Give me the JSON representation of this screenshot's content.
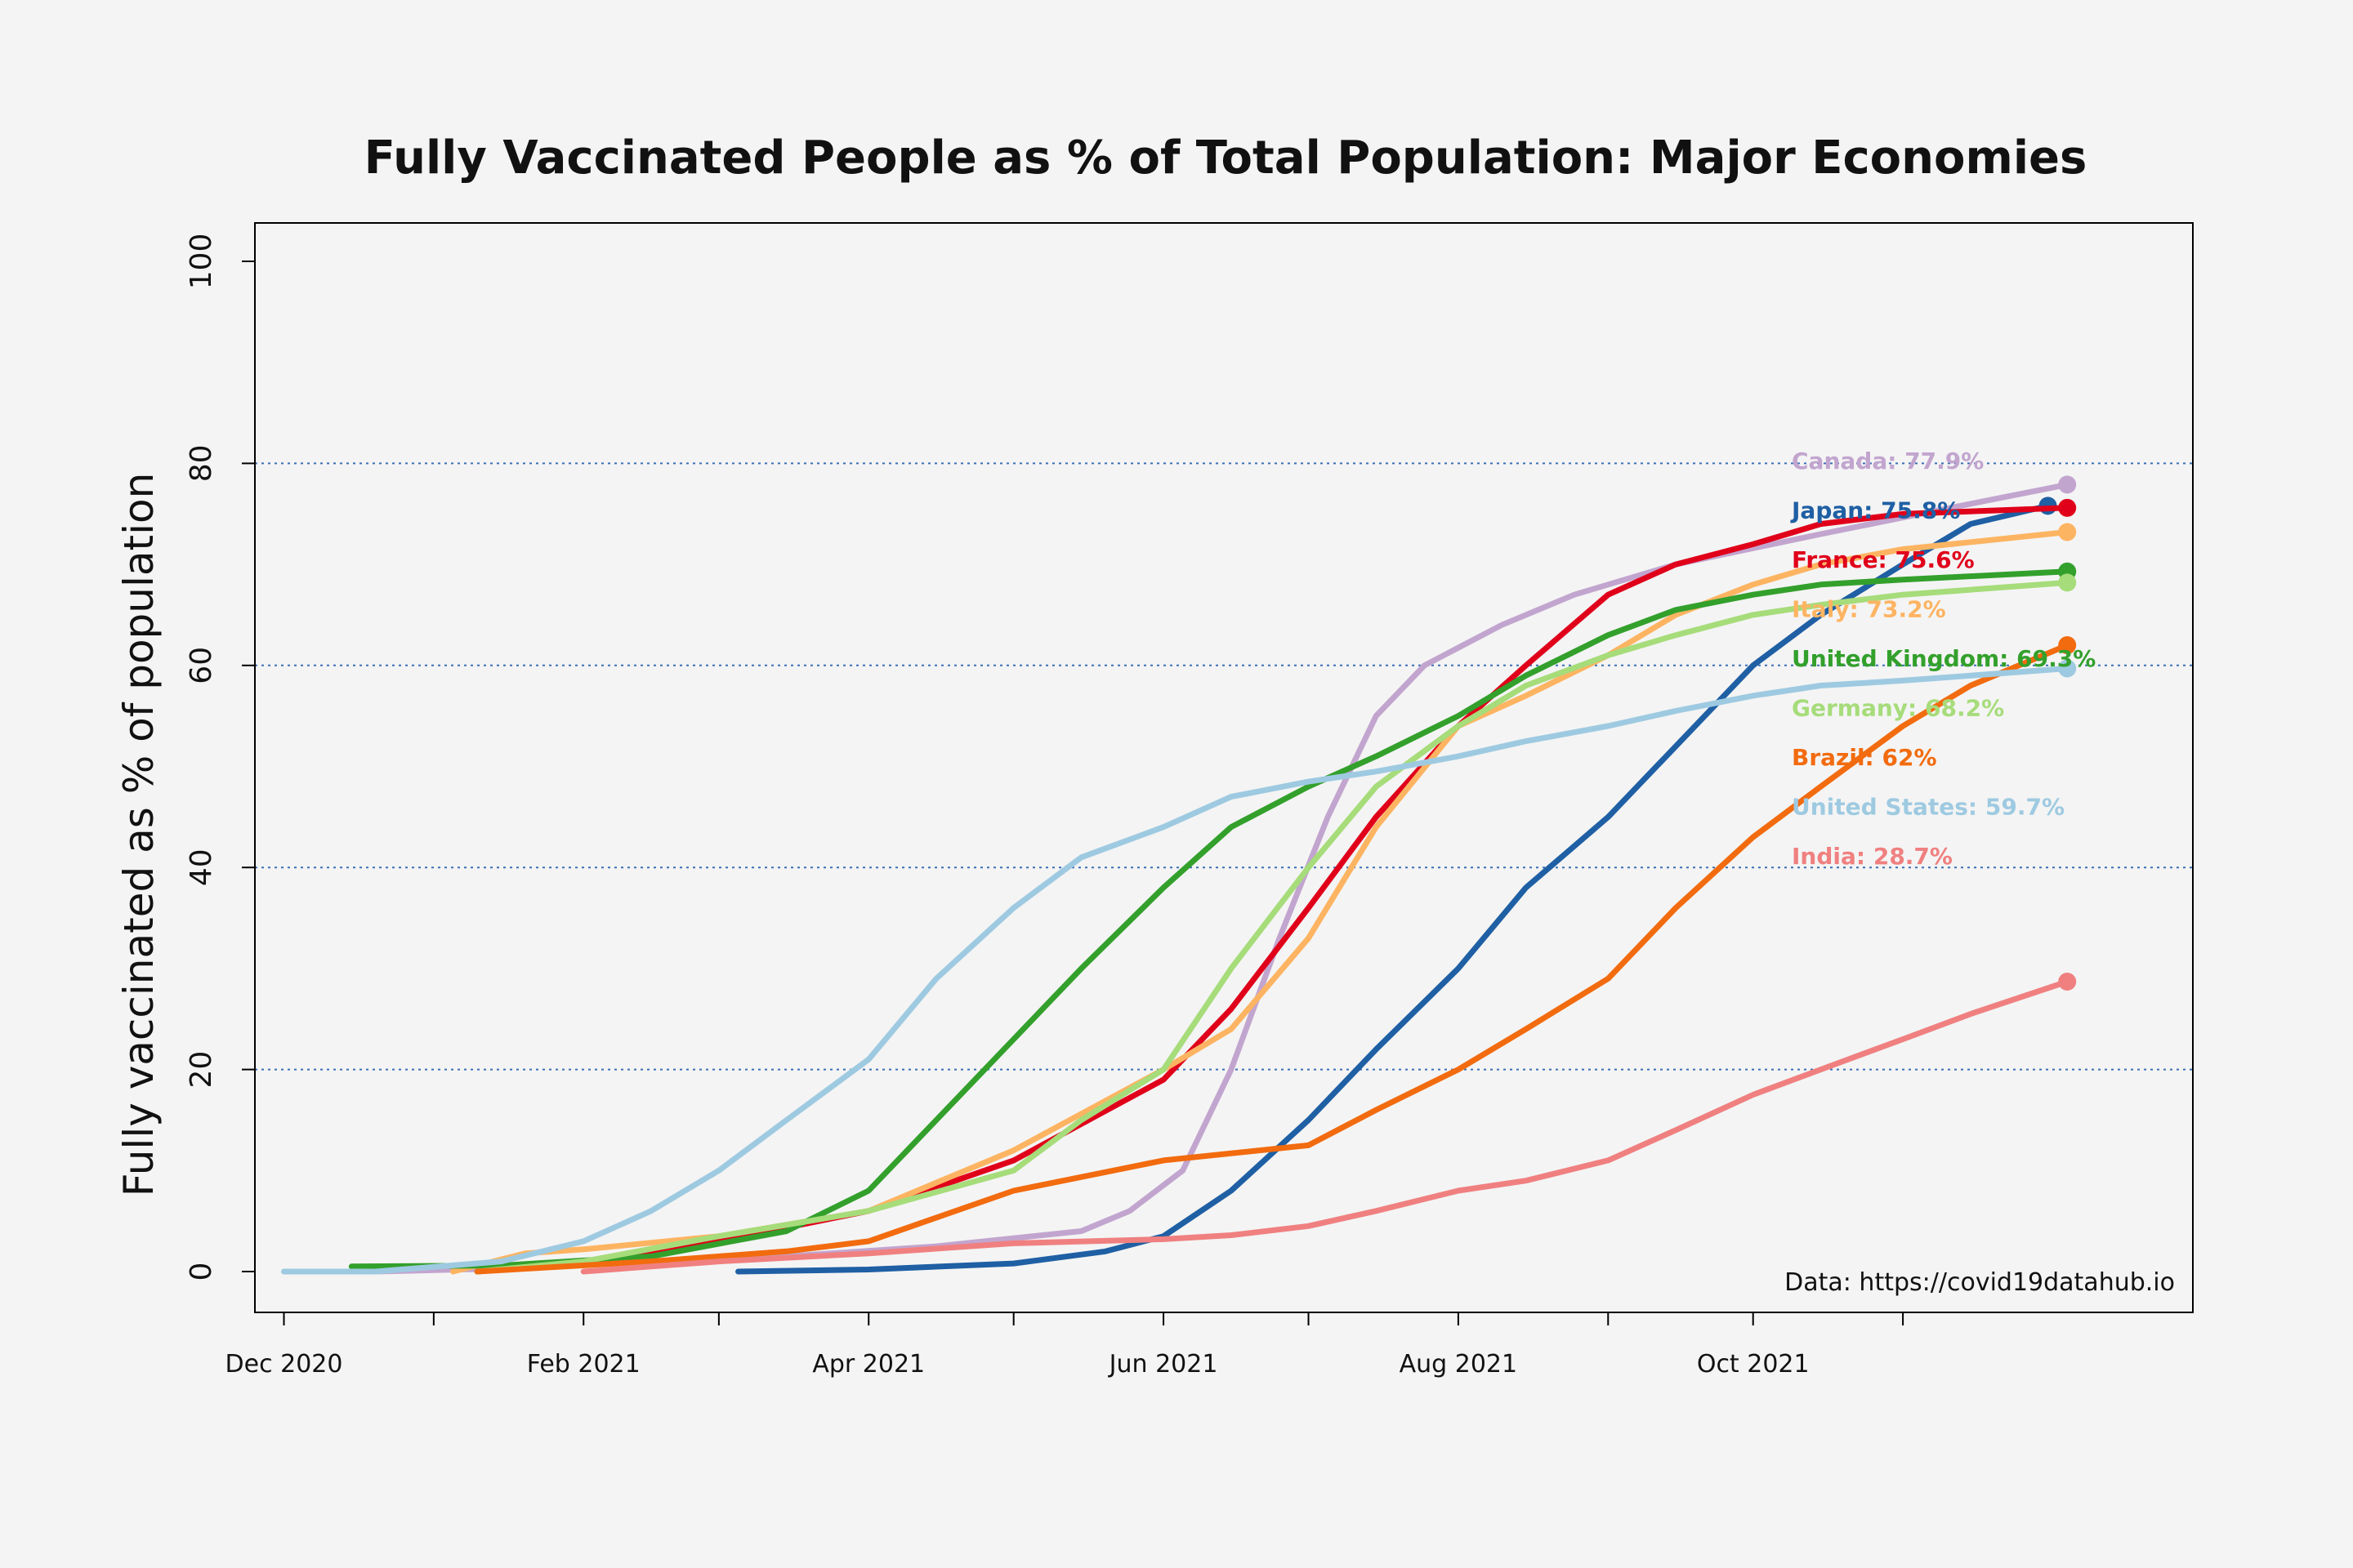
{
  "chart_data": {
    "type": "line",
    "title": "Fully Vaccinated People as % of Total Population: Major Economies",
    "ylabel": "Fully vaccinated as % of population",
    "xlabel": "",
    "source": "Data: https://covid19datahub.io",
    "ylim": [
      0,
      100
    ],
    "y_ticks": [
      0,
      20,
      40,
      60,
      80,
      100
    ],
    "y_grid": [
      20,
      40,
      60,
      80
    ],
    "x_range": [
      "2020-11-25",
      "2021-12-31"
    ],
    "x_tick_marks": [
      "2020-12-01",
      "2021-01-01",
      "2021-02-01",
      "2021-03-01",
      "2021-04-01",
      "2021-05-01",
      "2021-06-01",
      "2021-07-01",
      "2021-08-01",
      "2021-09-01",
      "2021-10-01",
      "2021-11-01"
    ],
    "x_ticks": [
      {
        "date": "2020-12-01",
        "label": "Dec 2020"
      },
      {
        "date": "2021-02-01",
        "label": "Feb 2021"
      },
      {
        "date": "2021-04-01",
        "label": "Apr 2021"
      },
      {
        "date": "2021-06-01",
        "label": "Jun 2021"
      },
      {
        "date": "2021-08-01",
        "label": "Aug 2021"
      },
      {
        "date": "2021-10-01",
        "label": "Oct 2021"
      }
    ],
    "series": [
      {
        "name": "Canada",
        "label": "Canada: 77.9%",
        "color": "#c2a5cf",
        "final": 77.9,
        "points": [
          [
            "2020-12-20",
            0
          ],
          [
            "2021-01-15",
            0.3
          ],
          [
            "2021-02-15",
            1
          ],
          [
            "2021-03-15",
            1.5
          ],
          [
            "2021-04-15",
            2.5
          ],
          [
            "2021-05-15",
            4
          ],
          [
            "2021-05-25",
            6
          ],
          [
            "2021-06-05",
            10
          ],
          [
            "2021-06-15",
            20
          ],
          [
            "2021-06-25",
            33
          ],
          [
            "2021-07-05",
            45
          ],
          [
            "2021-07-15",
            55
          ],
          [
            "2021-07-25",
            60
          ],
          [
            "2021-08-10",
            64
          ],
          [
            "2021-08-25",
            67
          ],
          [
            "2021-09-15",
            70
          ],
          [
            "2021-10-15",
            73
          ],
          [
            "2021-11-15",
            76
          ],
          [
            "2021-12-05",
            77.9
          ]
        ]
      },
      {
        "name": "Japan",
        "label": "Japan: 75.8%",
        "color": "#1f5fa4",
        "final": 75.8,
        "points": [
          [
            "2021-03-05",
            0
          ],
          [
            "2021-04-01",
            0.2
          ],
          [
            "2021-05-01",
            0.8
          ],
          [
            "2021-05-20",
            2
          ],
          [
            "2021-06-01",
            3.5
          ],
          [
            "2021-06-15",
            8
          ],
          [
            "2021-07-01",
            15
          ],
          [
            "2021-07-15",
            22
          ],
          [
            "2021-08-01",
            30
          ],
          [
            "2021-08-15",
            38
          ],
          [
            "2021-09-01",
            45
          ],
          [
            "2021-09-15",
            52
          ],
          [
            "2021-10-01",
            60
          ],
          [
            "2021-10-15",
            65
          ],
          [
            "2021-11-01",
            70
          ],
          [
            "2021-11-15",
            74
          ],
          [
            "2021-12-01",
            75.8
          ]
        ]
      },
      {
        "name": "France",
        "label": "France: 75.6%",
        "color": "#e0001a",
        "final": 75.6,
        "points": [
          [
            "2021-01-10",
            0
          ],
          [
            "2021-02-01",
            1
          ],
          [
            "2021-03-01",
            3
          ],
          [
            "2021-04-01",
            6
          ],
          [
            "2021-05-01",
            11
          ],
          [
            "2021-06-01",
            19
          ],
          [
            "2021-06-15",
            26
          ],
          [
            "2021-07-01",
            36
          ],
          [
            "2021-07-15",
            45
          ],
          [
            "2021-08-01",
            54
          ],
          [
            "2021-08-15",
            60
          ],
          [
            "2021-09-01",
            67
          ],
          [
            "2021-09-15",
            70
          ],
          [
            "2021-10-01",
            72
          ],
          [
            "2021-10-15",
            74
          ],
          [
            "2021-11-01",
            75
          ],
          [
            "2021-12-05",
            75.6
          ]
        ]
      },
      {
        "name": "Italy",
        "label": "Italy: 73.2%",
        "color": "#fdb462",
        "final": 73.2,
        "points": [
          [
            "2021-01-05",
            0
          ],
          [
            "2021-01-20",
            1.8
          ],
          [
            "2021-02-01",
            2.2
          ],
          [
            "2021-03-01",
            3.5
          ],
          [
            "2021-04-01",
            6
          ],
          [
            "2021-05-01",
            12
          ],
          [
            "2021-06-01",
            20
          ],
          [
            "2021-06-15",
            24
          ],
          [
            "2021-07-01",
            33
          ],
          [
            "2021-07-15",
            44
          ],
          [
            "2021-08-01",
            54
          ],
          [
            "2021-08-15",
            57
          ],
          [
            "2021-09-01",
            61
          ],
          [
            "2021-09-15",
            65
          ],
          [
            "2021-10-01",
            68
          ],
          [
            "2021-10-15",
            70
          ],
          [
            "2021-11-01",
            71.5
          ],
          [
            "2021-12-05",
            73.2
          ]
        ]
      },
      {
        "name": "United Kingdom",
        "label": "United Kingdom: 69.3%",
        "color": "#33a02c",
        "final": 69.3,
        "points": [
          [
            "2020-12-15",
            0.5
          ],
          [
            "2021-01-15",
            0.6
          ],
          [
            "2021-02-15",
            1.5
          ],
          [
            "2021-03-15",
            4
          ],
          [
            "2021-04-01",
            8
          ],
          [
            "2021-04-15",
            15
          ],
          [
            "2021-05-01",
            23
          ],
          [
            "2021-05-15",
            30
          ],
          [
            "2021-06-01",
            38
          ],
          [
            "2021-06-15",
            44
          ],
          [
            "2021-07-01",
            48
          ],
          [
            "2021-07-15",
            51
          ],
          [
            "2021-08-01",
            55
          ],
          [
            "2021-08-15",
            59
          ],
          [
            "2021-09-01",
            63
          ],
          [
            "2021-09-15",
            65.5
          ],
          [
            "2021-10-01",
            67
          ],
          [
            "2021-10-15",
            68
          ],
          [
            "2021-11-01",
            68.5
          ],
          [
            "2021-12-05",
            69.3
          ]
        ]
      },
      {
        "name": "Germany",
        "label": "Germany: 68.2%",
        "color": "#a6dc7a",
        "final": 68.2,
        "points": [
          [
            "2021-01-10",
            0
          ],
          [
            "2021-02-01",
            1
          ],
          [
            "2021-03-01",
            3.5
          ],
          [
            "2021-04-01",
            6
          ],
          [
            "2021-05-01",
            10
          ],
          [
            "2021-05-15",
            15
          ],
          [
            "2021-06-01",
            20
          ],
          [
            "2021-06-15",
            30
          ],
          [
            "2021-07-01",
            40
          ],
          [
            "2021-07-15",
            48
          ],
          [
            "2021-08-01",
            54
          ],
          [
            "2021-08-15",
            58
          ],
          [
            "2021-09-01",
            61
          ],
          [
            "2021-09-15",
            63
          ],
          [
            "2021-10-01",
            65
          ],
          [
            "2021-10-15",
            66
          ],
          [
            "2021-11-01",
            67
          ],
          [
            "2021-12-05",
            68.2
          ]
        ]
      },
      {
        "name": "Brazil",
        "label": "Brazil: 62%",
        "color": "#f26b0f",
        "final": 62,
        "points": [
          [
            "2021-01-10",
            0
          ],
          [
            "2021-02-15",
            1
          ],
          [
            "2021-03-15",
            2
          ],
          [
            "2021-04-01",
            3
          ],
          [
            "2021-05-01",
            8
          ],
          [
            "2021-06-01",
            11
          ],
          [
            "2021-07-01",
            12.5
          ],
          [
            "2021-07-15",
            16
          ],
          [
            "2021-08-01",
            20
          ],
          [
            "2021-08-15",
            24
          ],
          [
            "2021-09-01",
            29
          ],
          [
            "2021-09-15",
            36
          ],
          [
            "2021-10-01",
            43
          ],
          [
            "2021-10-15",
            48
          ],
          [
            "2021-11-01",
            54
          ],
          [
            "2021-11-15",
            58
          ],
          [
            "2021-12-05",
            62
          ]
        ]
      },
      {
        "name": "United States",
        "label": "United States: 59.7%",
        "color": "#9ecae1",
        "final": 59.7,
        "points": [
          [
            "2020-12-01",
            0
          ],
          [
            "2020-12-20",
            0
          ],
          [
            "2021-01-15",
            1
          ],
          [
            "2021-02-01",
            3
          ],
          [
            "2021-02-15",
            6
          ],
          [
            "2021-03-01",
            10
          ],
          [
            "2021-03-15",
            15
          ],
          [
            "2021-04-01",
            21
          ],
          [
            "2021-04-15",
            29
          ],
          [
            "2021-05-01",
            36
          ],
          [
            "2021-05-15",
            41
          ],
          [
            "2021-06-01",
            44
          ],
          [
            "2021-06-15",
            47
          ],
          [
            "2021-07-01",
            48.5
          ],
          [
            "2021-07-15",
            49.5
          ],
          [
            "2021-08-01",
            51
          ],
          [
            "2021-08-15",
            52.5
          ],
          [
            "2021-09-01",
            54
          ],
          [
            "2021-09-15",
            55.5
          ],
          [
            "2021-10-01",
            57
          ],
          [
            "2021-10-15",
            58
          ],
          [
            "2021-11-01",
            58.5
          ],
          [
            "2021-12-05",
            59.7
          ]
        ]
      },
      {
        "name": "India",
        "label": "India: 28.7%",
        "color": "#f08080",
        "final": 28.7,
        "points": [
          [
            "2021-02-01",
            0
          ],
          [
            "2021-03-01",
            1
          ],
          [
            "2021-04-01",
            1.8
          ],
          [
            "2021-05-01",
            2.8
          ],
          [
            "2021-06-01",
            3.2
          ],
          [
            "2021-06-15",
            3.6
          ],
          [
            "2021-07-01",
            4.5
          ],
          [
            "2021-07-15",
            6
          ],
          [
            "2021-08-01",
            8
          ],
          [
            "2021-08-15",
            9
          ],
          [
            "2021-09-01",
            11
          ],
          [
            "2021-09-15",
            14
          ],
          [
            "2021-10-01",
            17.5
          ],
          [
            "2021-10-15",
            20
          ],
          [
            "2021-11-01",
            23
          ],
          [
            "2021-11-15",
            25.5
          ],
          [
            "2021-12-05",
            28.7
          ]
        ]
      }
    ]
  }
}
